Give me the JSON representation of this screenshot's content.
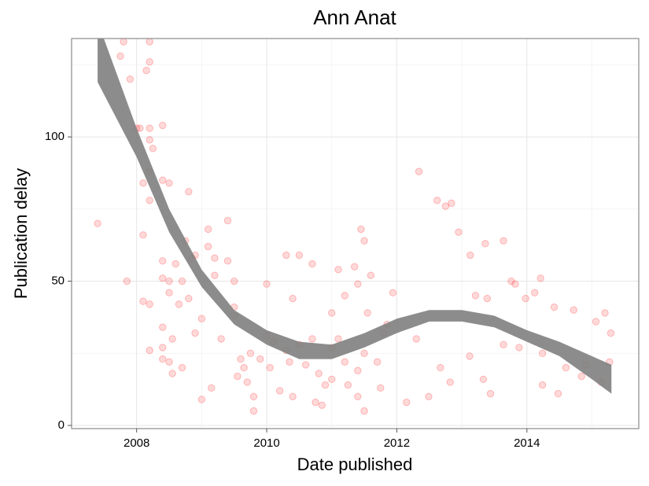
{
  "chart_data": {
    "type": "scatter",
    "title": "Ann Anat",
    "x_label": "Date published",
    "y_label": "Publication delay",
    "xlim": [
      2007.0,
      2015.72
    ],
    "ylim": [
      -1.1,
      134.1
    ],
    "xticks": [
      2008,
      2010,
      2012,
      2014
    ],
    "yticks": [
      0,
      50,
      100
    ],
    "x_minor_grid": [
      2009,
      2011,
      2013,
      2015
    ],
    "y_minor_grid": [
      25,
      75,
      125
    ],
    "grid": true,
    "color": "#ff0000",
    "point_opacity": 0.15,
    "x": [
      2007.4,
      2007.8,
      2007.75,
      2007.9,
      2007.85,
      2008.0,
      2008.05,
      2008.1,
      2008.1,
      2008.1,
      2008.15,
      2008.2,
      2008.2,
      2008.2,
      2008.2,
      2008.2,
      2008.2,
      2008.2,
      2008.2,
      2008.25,
      2008.4,
      2008.4,
      2008.4,
      2008.4,
      2008.4,
      2008.4,
      2008.4,
      2008.5,
      2008.5,
      2008.5,
      2008.5,
      2008.55,
      2008.55,
      2008.6,
      2008.65,
      2008.7,
      2008.7,
      2008.75,
      2008.8,
      2008.8,
      2008.85,
      2008.9,
      2008.9,
      2009.0,
      2009.0,
      2009.1,
      2009.1,
      2009.15,
      2009.2,
      2009.2,
      2009.3,
      2009.4,
      2009.4,
      2009.5,
      2009.5,
      2009.5,
      2009.55,
      2009.6,
      2009.65,
      2009.7,
      2009.75,
      2009.8,
      2009.8,
      2009.9,
      2010.0,
      2010.0,
      2010.05,
      2010.1,
      2010.2,
      2010.3,
      2010.3,
      2010.35,
      2010.4,
      2010.4,
      2010.5,
      2010.5,
      2010.6,
      2010.7,
      2010.7,
      2010.75,
      2010.8,
      2010.85,
      2010.9,
      2011.0,
      2011.0,
      2011.0,
      2011.1,
      2011.1,
      2011.2,
      2011.2,
      2011.25,
      2011.35,
      2011.4,
      2011.4,
      2011.4,
      2011.45,
      2011.5,
      2011.5,
      2011.5,
      2011.55,
      2011.6,
      2011.7,
      2011.75,
      2011.8,
      2011.85,
      2011.94,
      2012.15,
      2012.3,
      2012.34,
      2012.49,
      2012.62,
      2012.67,
      2012.75,
      2012.82,
      2012.84,
      2012.95,
      2013.12,
      2013.13,
      2013.21,
      2013.33,
      2013.36,
      2013.39,
      2013.44,
      2013.64,
      2013.64,
      2013.76,
      2013.82,
      2013.88,
      2013.98,
      2014.12,
      2014.21,
      2014.24,
      2014.24,
      2014.42,
      2014.48,
      2014.6,
      2014.72,
      2014.84,
      2014.9,
      2015.06,
      2015.14,
      2015.2,
      2015.27,
      2015.29
    ],
    "values": [
      70,
      133,
      128,
      120,
      50,
      103,
      103,
      84,
      66,
      43,
      123,
      133,
      126,
      103,
      99,
      88,
      78,
      42,
      26,
      96,
      104,
      85,
      57,
      51,
      34,
      27,
      23,
      84,
      50,
      46,
      22,
      30,
      18,
      56,
      42,
      50,
      20,
      64,
      81,
      44,
      58,
      59,
      32,
      37,
      9,
      68,
      62,
      13,
      58,
      52,
      30,
      71,
      57,
      50,
      41,
      38,
      17,
      23,
      20,
      15,
      25,
      10,
      5,
      23,
      49,
      31,
      20,
      29,
      12,
      59,
      26,
      22,
      44,
      10,
      59,
      28,
      21,
      56,
      30,
      8,
      18,
      7,
      14,
      39,
      27,
      16,
      54,
      30,
      45,
      22,
      14,
      55,
      49,
      19,
      10,
      68,
      64,
      25,
      5,
      39,
      52,
      22,
      13,
      32,
      35,
      46,
      8,
      30,
      88,
      10,
      78,
      20,
      76,
      15,
      77,
      67,
      24,
      59,
      45,
      16,
      63,
      44,
      11,
      64,
      28,
      50,
      49,
      27,
      44,
      46,
      51,
      14,
      25,
      41,
      11,
      20,
      40,
      17,
      21,
      36,
      15,
      39,
      22,
      32
    ],
    "band": {
      "color": "#808080",
      "x": [
        2007.4,
        2008.0,
        2008.5,
        2009.0,
        2009.5,
        2010.0,
        2010.5,
        2011.0,
        2011.5,
        2012.0,
        2012.5,
        2013.0,
        2013.5,
        2014.0,
        2014.5,
        2015.0,
        2015.3
      ],
      "lower": [
        119,
        93,
        67,
        48,
        35,
        28,
        23,
        23,
        27,
        32,
        36,
        36,
        34,
        29,
        24,
        16,
        11
      ],
      "upper": [
        140,
        103,
        75,
        54,
        40,
        33,
        29,
        28,
        32,
        37,
        40,
        40,
        38,
        33,
        29,
        24,
        21
      ]
    }
  }
}
